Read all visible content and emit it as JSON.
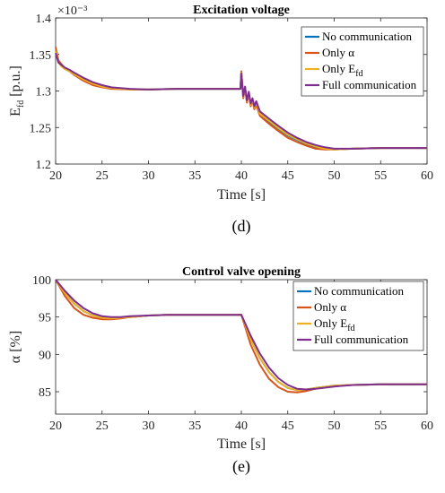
{
  "colors": {
    "no_communication": "#0072BD",
    "only_alpha": "#D95319",
    "only_efd": "#EDB120",
    "full_communication": "#7E2F8E"
  },
  "chart_data": [
    {
      "type": "line",
      "panel_label": "(d)",
      "title": "Excitation voltage",
      "xlabel": "Time [s]",
      "ylabel": "E_fd [p.u.]",
      "y_multiplier": "×10⁻³",
      "xlim": [
        20,
        60
      ],
      "ylim": [
        1.2,
        1.4
      ],
      "xticks": [
        20,
        25,
        30,
        35,
        40,
        45,
        50,
        55,
        60
      ],
      "yticks": [
        1.2,
        1.25,
        1.3,
        1.35,
        1.4
      ],
      "ytick_labels": [
        "1.2",
        "1.25",
        "1.3",
        "1.35",
        "1.4"
      ],
      "grid": false,
      "legend_position": "top-right",
      "legend": [
        "No communication",
        "Only α",
        "Only E_fd",
        "Full communication"
      ],
      "series": [
        {
          "name": "No communication",
          "x": [
            20,
            20.3,
            20.6,
            21,
            21.5,
            22,
            23,
            24,
            25,
            26,
            28,
            30,
            33,
            35,
            38,
            39.9,
            40,
            40.2,
            40.4,
            40.6,
            40.8,
            41,
            41.2,
            41.4,
            41.6,
            42,
            43,
            44,
            45,
            46,
            47,
            48,
            49,
            50,
            52,
            55,
            58,
            60
          ],
          "y": [
            1.355,
            1.34,
            1.335,
            1.33,
            1.327,
            1.322,
            1.315,
            1.31,
            1.306,
            1.304,
            1.302,
            1.302,
            1.303,
            1.303,
            1.303,
            1.303,
            1.326,
            1.291,
            1.305,
            1.285,
            1.297,
            1.28,
            1.287,
            1.276,
            1.283,
            1.268,
            1.258,
            1.248,
            1.239,
            1.233,
            1.227,
            1.223,
            1.221,
            1.22,
            1.221,
            1.222,
            1.222,
            1.222
          ]
        },
        {
          "name": "Only α",
          "x": [
            20,
            20.3,
            20.6,
            21,
            21.5,
            22,
            23,
            24,
            25,
            26,
            28,
            30,
            33,
            35,
            38,
            39.9,
            40,
            40.2,
            40.4,
            40.6,
            40.8,
            41,
            41.2,
            41.4,
            41.6,
            42,
            43,
            44,
            45,
            46,
            47,
            48,
            49,
            50,
            52,
            55,
            58,
            60
          ],
          "y": [
            1.36,
            1.342,
            1.337,
            1.331,
            1.327,
            1.322,
            1.314,
            1.308,
            1.305,
            1.303,
            1.302,
            1.302,
            1.303,
            1.303,
            1.303,
            1.303,
            1.327,
            1.29,
            1.304,
            1.284,
            1.296,
            1.279,
            1.287,
            1.275,
            1.281,
            1.266,
            1.255,
            1.245,
            1.236,
            1.23,
            1.225,
            1.221,
            1.22,
            1.22,
            1.221,
            1.222,
            1.222,
            1.222
          ]
        },
        {
          "name": "Only E_fd",
          "x": [
            20,
            20.3,
            20.6,
            21,
            21.5,
            22,
            23,
            24,
            25,
            26,
            28,
            30,
            33,
            35,
            38,
            39.9,
            40,
            40.2,
            40.4,
            40.6,
            40.8,
            41,
            41.2,
            41.4,
            41.6,
            42,
            43,
            44,
            45,
            46,
            47,
            48,
            49,
            50,
            52,
            55,
            58,
            60
          ],
          "y": [
            1.355,
            1.339,
            1.334,
            1.33,
            1.327,
            1.323,
            1.316,
            1.31,
            1.306,
            1.304,
            1.302,
            1.302,
            1.303,
            1.303,
            1.303,
            1.303,
            1.325,
            1.292,
            1.305,
            1.286,
            1.297,
            1.281,
            1.288,
            1.277,
            1.284,
            1.269,
            1.259,
            1.249,
            1.24,
            1.234,
            1.228,
            1.224,
            1.221,
            1.22,
            1.221,
            1.222,
            1.222,
            1.222
          ]
        },
        {
          "name": "Full communication",
          "x": [
            20,
            20.3,
            20.6,
            21,
            21.5,
            22,
            23,
            24,
            25,
            26,
            28,
            30,
            33,
            35,
            38,
            39.9,
            40,
            40.2,
            40.4,
            40.6,
            40.8,
            41,
            41.2,
            41.4,
            41.6,
            42,
            43,
            44,
            45,
            46,
            47,
            48,
            49,
            50,
            52,
            55,
            58,
            60
          ],
          "y": [
            1.352,
            1.339,
            1.336,
            1.332,
            1.329,
            1.325,
            1.318,
            1.312,
            1.308,
            1.305,
            1.303,
            1.302,
            1.303,
            1.303,
            1.303,
            1.303,
            1.324,
            1.293,
            1.306,
            1.287,
            1.299,
            1.283,
            1.29,
            1.279,
            1.286,
            1.272,
            1.262,
            1.252,
            1.243,
            1.236,
            1.23,
            1.226,
            1.223,
            1.221,
            1.221,
            1.222,
            1.222,
            1.222
          ]
        }
      ]
    },
    {
      "type": "line",
      "panel_label": "(e)",
      "title": "Control valve opening",
      "xlabel": "Time [s]",
      "ylabel": "α [%]",
      "xlim": [
        20,
        60
      ],
      "ylim": [
        82,
        100
      ],
      "xticks": [
        20,
        25,
        30,
        35,
        40,
        45,
        50,
        55,
        60
      ],
      "yticks": [
        85,
        90,
        95,
        100
      ],
      "ytick_labels": [
        "85",
        "90",
        "95",
        "100"
      ],
      "grid": false,
      "legend_position": "top-right",
      "legend": [
        "No communication",
        "Only α",
        "Only E_fd",
        "Full communication"
      ],
      "series": [
        {
          "name": "No communication",
          "x": [
            20,
            21,
            22,
            23,
            24,
            25,
            26,
            27,
            28,
            30,
            32,
            35,
            38,
            40,
            41,
            42,
            43,
            44,
            45,
            46,
            47,
            48,
            50,
            52,
            55,
            58,
            60
          ],
          "y": [
            100,
            98.2,
            96.8,
            95.8,
            95.2,
            94.9,
            94.8,
            94.9,
            95.0,
            95.2,
            95.3,
            95.3,
            95.3,
            95.3,
            92.0,
            89.5,
            87.6,
            86.3,
            85.5,
            85.2,
            85.3,
            85.5,
            85.8,
            85.9,
            86.0,
            86.0,
            86.0
          ]
        },
        {
          "name": "Only α",
          "x": [
            20,
            21,
            22,
            23,
            24,
            25,
            26,
            27,
            28,
            30,
            32,
            35,
            38,
            40,
            41,
            42,
            43,
            44,
            45,
            46,
            47,
            48,
            50,
            52,
            55,
            58,
            60
          ],
          "y": [
            100,
            97.8,
            96.2,
            95.3,
            94.9,
            94.7,
            94.7,
            94.8,
            95.0,
            95.2,
            95.3,
            95.3,
            95.3,
            95.3,
            91.3,
            88.6,
            86.7,
            85.6,
            85.0,
            84.9,
            85.1,
            85.4,
            85.8,
            85.9,
            86.0,
            86.0,
            86.0
          ]
        },
        {
          "name": "Only E_fd",
          "x": [
            20,
            21,
            22,
            23,
            24,
            25,
            26,
            27,
            28,
            30,
            32,
            35,
            38,
            40,
            41,
            42,
            43,
            44,
            45,
            46,
            47,
            48,
            50,
            52,
            55,
            58,
            60
          ],
          "y": [
            100,
            98.2,
            96.8,
            95.8,
            95.2,
            94.9,
            94.8,
            94.9,
            95.0,
            95.2,
            95.3,
            95.3,
            95.3,
            95.3,
            92.0,
            89.5,
            87.6,
            86.3,
            85.5,
            85.2,
            85.3,
            85.5,
            85.8,
            85.9,
            86.0,
            86.0,
            86.0
          ]
        },
        {
          "name": "Full communication",
          "x": [
            20,
            21,
            22,
            23,
            24,
            25,
            26,
            27,
            28,
            30,
            32,
            35,
            38,
            40,
            41,
            42,
            43,
            44,
            45,
            46,
            47,
            48,
            50,
            52,
            55,
            58,
            60
          ],
          "y": [
            100,
            98.5,
            97.2,
            96.2,
            95.5,
            95.1,
            95.0,
            95.0,
            95.1,
            95.2,
            95.3,
            95.3,
            95.3,
            95.3,
            92.5,
            90.1,
            88.2,
            86.8,
            85.9,
            85.4,
            85.3,
            85.4,
            85.7,
            85.9,
            86.0,
            86.0,
            86.0
          ]
        }
      ]
    }
  ]
}
